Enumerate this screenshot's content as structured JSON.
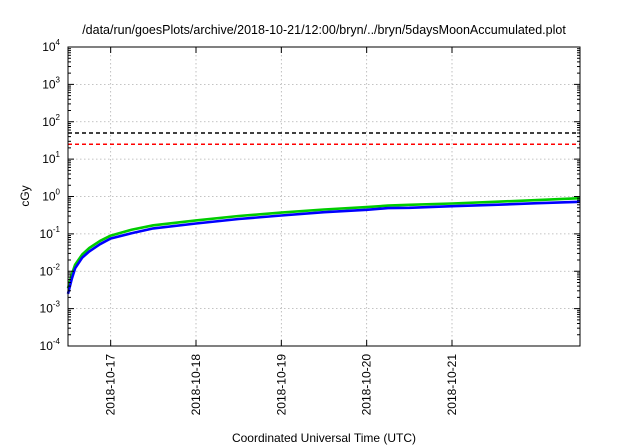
{
  "chart_data": {
    "type": "line",
    "title": "/data/run/goesPlots/archive/2018-10-21/12:00/bryn/../bryn/5daysMoonAccumulated.plot",
    "xlabel": "Coordinated Universal Time (UTC)",
    "ylabel": "cGy",
    "y_scale": "log",
    "ylim": [
      0.0001,
      10000
    ],
    "y_ticks": [
      {
        "base": "10",
        "exp": "-4",
        "value": 0.0001
      },
      {
        "base": "10",
        "exp": "-3",
        "value": 0.001
      },
      {
        "base": "10",
        "exp": "-2",
        "value": 0.01
      },
      {
        "base": "10",
        "exp": "-1",
        "value": 0.1
      },
      {
        "base": "10",
        "exp": "0",
        "value": 1
      },
      {
        "base": "10",
        "exp": "1",
        "value": 10
      },
      {
        "base": "10",
        "exp": "2",
        "value": 100
      },
      {
        "base": "10",
        "exp": "3",
        "value": 1000
      },
      {
        "base": "10",
        "exp": "4",
        "value": 10000
      }
    ],
    "x_range": [
      "2018-10-16T12:00",
      "2018-10-22T12:00"
    ],
    "x_ticks": [
      "2018-10-17",
      "2018-10-18",
      "2018-10-19",
      "2018-10-20",
      "2018-10-21"
    ],
    "grid": true,
    "series": [
      {
        "color": "#00cc00",
        "x": [
          "2018-10-16T12:00",
          "2018-10-16T13:00",
          "2018-10-16T14:00",
          "2018-10-16T16:00",
          "2018-10-16T18:00",
          "2018-10-16T21:00",
          "2018-10-17T00:00",
          "2018-10-17T06:00",
          "2018-10-17T12:00",
          "2018-10-18T00:00",
          "2018-10-18T12:00",
          "2018-10-19T00:00",
          "2018-10-19T12:00",
          "2018-10-20T00:00",
          "2018-10-20T06:00",
          "2018-10-20T12:00",
          "2018-10-21T00:00",
          "2018-10-21T12:00",
          "2018-10-22T00:00",
          "2018-10-22T12:00"
        ],
        "y": [
          0.0035,
          0.008,
          0.015,
          0.028,
          0.042,
          0.065,
          0.09,
          0.13,
          0.17,
          0.23,
          0.3,
          0.37,
          0.45,
          0.52,
          0.57,
          0.6,
          0.65,
          0.72,
          0.8,
          0.9
        ]
      },
      {
        "color": "#0000ff",
        "x": [
          "2018-10-16T12:00",
          "2018-10-16T13:00",
          "2018-10-16T14:00",
          "2018-10-16T16:00",
          "2018-10-16T18:00",
          "2018-10-16T21:00",
          "2018-10-17T00:00",
          "2018-10-17T06:00",
          "2018-10-17T12:00",
          "2018-10-18T00:00",
          "2018-10-18T12:00",
          "2018-10-19T00:00",
          "2018-10-19T12:00",
          "2018-10-20T00:00",
          "2018-10-20T06:00",
          "2018-10-20T12:00",
          "2018-10-21T00:00",
          "2018-10-21T12:00",
          "2018-10-22T00:00",
          "2018-10-22T12:00"
        ],
        "y": [
          0.0025,
          0.006,
          0.012,
          0.023,
          0.034,
          0.053,
          0.075,
          0.105,
          0.14,
          0.19,
          0.25,
          0.31,
          0.38,
          0.44,
          0.49,
          0.5,
          0.55,
          0.6,
          0.66,
          0.72
        ]
      }
    ],
    "thresholds": [
      {
        "color": "#000000",
        "style": "dashed",
        "value": 50
      },
      {
        "color": "#ff0000",
        "style": "dashed",
        "value": 25
      }
    ]
  }
}
